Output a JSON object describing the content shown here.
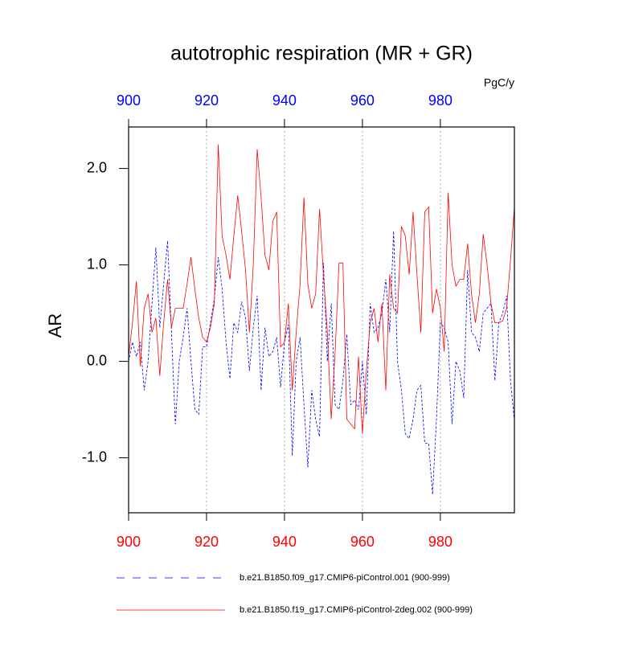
{
  "chart_data": {
    "type": "line",
    "title": "autotrophic respiration (MR + GR)",
    "units": "PgC/y",
    "y_label": "AR",
    "x": [
      900,
      901,
      902,
      903,
      904,
      905,
      906,
      907,
      908,
      909,
      910,
      911,
      912,
      913,
      914,
      915,
      916,
      917,
      918,
      919,
      920,
      921,
      922,
      923,
      924,
      925,
      926,
      927,
      928,
      929,
      930,
      931,
      932,
      933,
      934,
      935,
      936,
      937,
      938,
      939,
      940,
      941,
      942,
      943,
      944,
      945,
      946,
      947,
      948,
      949,
      950,
      951,
      952,
      953,
      954,
      955,
      956,
      957,
      958,
      959,
      960,
      961,
      962,
      963,
      964,
      965,
      966,
      967,
      968,
      969,
      970,
      971,
      972,
      973,
      974,
      975,
      976,
      977,
      978,
      979,
      980,
      981,
      982,
      983,
      984,
      985,
      986,
      987,
      988,
      989,
      990,
      991,
      992,
      993,
      994,
      995,
      996,
      997,
      998,
      999
    ],
    "series": [
      {
        "name": "b.e21.B1850.f09_g17.CMIP6-piControl.001 (900-999)",
        "color": "#0000ff",
        "dashed": true,
        "values": [
          0.0,
          0.2,
          0.05,
          0.2,
          -0.3,
          0.0,
          0.6,
          1.18,
          0.35,
          0.8,
          1.25,
          0.3,
          -0.65,
          0.0,
          0.25,
          0.55,
          0.0,
          -0.5,
          -0.55,
          0.15,
          0.15,
          0.4,
          0.65,
          1.08,
          0.75,
          0.2,
          -0.18,
          0.4,
          0.3,
          0.62,
          0.45,
          -0.1,
          0.35,
          0.68,
          -0.3,
          0.35,
          0.05,
          0.1,
          0.25,
          -0.27,
          0.2,
          0.38,
          -0.98,
          0.0,
          0.25,
          -0.45,
          -1.1,
          -0.3,
          -0.6,
          -0.78,
          1.02,
          0.0,
          0.6,
          -0.45,
          -0.5,
          -0.2,
          0.28,
          -0.45,
          -0.4,
          -0.5,
          0.0,
          -0.55,
          0.6,
          0.3,
          0.35,
          0.5,
          0.85,
          0.3,
          1.35,
          0.0,
          -0.3,
          -0.75,
          -0.8,
          -0.6,
          -0.3,
          -0.25,
          -0.85,
          -0.85,
          -1.38,
          -0.6,
          0.4,
          0.35,
          0.2,
          -0.65,
          0.0,
          -0.1,
          -0.38,
          0.95,
          0.3,
          0.25,
          0.1,
          0.5,
          0.55,
          0.6,
          -0.2,
          0.4,
          0.5,
          0.68,
          -0.2,
          -0.62
        ]
      },
      {
        "name": "b.e21.B1850.f19_g17.CMIP6-piControl-2deg.002 (900-999)",
        "color": "#ff0000",
        "dashed": false,
        "values": [
          0.05,
          0.4,
          0.83,
          -0.05,
          0.55,
          0.7,
          0.3,
          0.45,
          -0.15,
          0.4,
          0.85,
          0.35,
          0.55,
          0.55,
          0.55,
          0.8,
          1.08,
          0.75,
          0.45,
          0.25,
          0.2,
          0.35,
          0.6,
          2.25,
          1.3,
          1.1,
          0.85,
          1.3,
          1.72,
          1.35,
          0.95,
          0.3,
          1.0,
          2.2,
          1.7,
          1.1,
          0.95,
          1.45,
          1.55,
          0.15,
          0.2,
          0.6,
          -0.3,
          0.3,
          0.8,
          1.7,
          0.8,
          0.55,
          0.7,
          1.58,
          0.9,
          0.3,
          -0.6,
          0.1,
          1.02,
          1.02,
          -0.6,
          -0.65,
          -0.7,
          0.05,
          -0.75,
          -0.1,
          0.4,
          0.55,
          0.2,
          0.6,
          -0.3,
          0.9,
          0.55,
          0.5,
          1.4,
          1.3,
          0.9,
          1.55,
          0.9,
          0.3,
          1.55,
          1.6,
          0.5,
          0.75,
          0.55,
          0.1,
          1.75,
          1.0,
          0.78,
          0.85,
          0.85,
          1.22,
          0.7,
          0.4,
          0.7,
          1.32,
          1.0,
          0.6,
          0.4,
          0.4,
          0.42,
          0.55,
          1.05,
          1.6
        ]
      }
    ],
    "xlim": [
      900,
      999
    ],
    "ylim": [
      -1.57,
      2.43
    ],
    "xticks": [
      900,
      920,
      940,
      960,
      980
    ],
    "yticks": [
      {
        "value": -1.0,
        "label": "-1.0"
      },
      {
        "value": 0.0,
        "label": "0.0"
      },
      {
        "value": 1.0,
        "label": "1.0"
      },
      {
        "value": 2.0,
        "label": "2.0"
      }
    ],
    "top_tick_color": "#0000ff",
    "bottom_tick_color": "#ff0000",
    "grid": "x"
  }
}
